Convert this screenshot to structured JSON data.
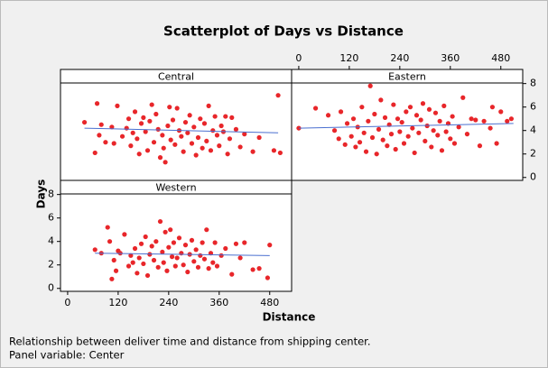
{
  "chart_data": {
    "type": "scatter",
    "title": "Scatterplot of Days vs Distance",
    "x_label": "Distance",
    "y_label": "Days",
    "footnotes": [
      "Relationship between deliver time and distance from shipping center.",
      "Panel variable: Center"
    ],
    "xlim": [
      -17,
      532
    ],
    "ylim": [
      -0.25,
      8.05
    ],
    "xticks": [
      0,
      120,
      240,
      360,
      480
    ],
    "yticks": [
      0,
      2,
      4,
      6,
      8
    ],
    "color": "#e8262a",
    "fit_color": "#4a6fd0",
    "panels": [
      {
        "name": "Central",
        "x": [
          40,
          65,
          70,
          75,
          80,
          90,
          105,
          110,
          118,
          130,
          140,
          145,
          150,
          155,
          160,
          165,
          170,
          175,
          180,
          185,
          190,
          195,
          200,
          205,
          210,
          215,
          220,
          225,
          228,
          232,
          238,
          242,
          245,
          250,
          255,
          260,
          265,
          270,
          275,
          280,
          285,
          290,
          295,
          300,
          305,
          310,
          315,
          320,
          325,
          330,
          335,
          340,
          345,
          350,
          355,
          360,
          365,
          370,
          375,
          380,
          385,
          390,
          400,
          410,
          420,
          440,
          455,
          490,
          500,
          505
        ],
        "y": [
          4.7,
          2.1,
          6.3,
          3.6,
          4.5,
          3.0,
          4.3,
          2.9,
          6.1,
          3.5,
          4.2,
          5.0,
          2.7,
          3.8,
          5.6,
          3.3,
          2.0,
          4.6,
          5.1,
          3.9,
          2.3,
          4.8,
          6.2,
          3.0,
          5.4,
          4.1,
          1.7,
          3.6,
          2.5,
          1.3,
          4.4,
          6.0,
          3.2,
          4.9,
          2.8,
          5.9,
          4.0,
          3.5,
          2.2,
          4.7,
          3.8,
          5.3,
          2.9,
          4.3,
          1.9,
          3.4,
          5.0,
          2.5,
          4.6,
          3.1,
          6.1,
          2.3,
          4.0,
          5.2,
          3.6,
          2.7,
          4.4,
          3.9,
          5.2,
          2.0,
          3.3,
          5.1,
          4.1,
          2.6,
          3.7,
          2.2,
          3.4,
          2.3,
          7.0,
          2.1
        ],
        "fit": {
          "x": [
            40,
            500
          ],
          "y": [
            4.2,
            3.8
          ]
        }
      },
      {
        "name": "Eastern",
        "x": [
          0,
          40,
          70,
          85,
          95,
          100,
          110,
          115,
          125,
          130,
          135,
          140,
          145,
          150,
          155,
          160,
          165,
          170,
          175,
          180,
          185,
          190,
          195,
          200,
          205,
          210,
          215,
          220,
          225,
          230,
          235,
          240,
          245,
          250,
          255,
          260,
          265,
          270,
          275,
          280,
          285,
          290,
          295,
          300,
          305,
          310,
          315,
          320,
          325,
          330,
          335,
          340,
          345,
          350,
          355,
          360,
          365,
          370,
          380,
          390,
          400,
          410,
          420,
          430,
          440,
          455,
          460,
          470,
          480,
          495,
          505
        ],
        "y": [
          4.2,
          5.9,
          5.3,
          4.0,
          3.3,
          5.6,
          2.8,
          4.6,
          3.5,
          5.0,
          2.6,
          4.3,
          3.0,
          6.0,
          3.8,
          2.2,
          4.8,
          7.8,
          3.4,
          5.4,
          2.0,
          4.1,
          6.6,
          3.2,
          5.1,
          2.7,
          4.5,
          3.7,
          6.2,
          2.4,
          5.0,
          3.9,
          4.7,
          2.9,
          5.6,
          3.5,
          6.0,
          4.2,
          2.1,
          5.3,
          3.8,
          4.9,
          6.3,
          3.1,
          4.4,
          5.8,
          2.6,
          4.0,
          5.5,
          3.6,
          4.8,
          2.3,
          6.1,
          3.9,
          4.6,
          3.3,
          5.2,
          2.9,
          4.3,
          6.8,
          3.7,
          5.0,
          4.9,
          2.7,
          4.8,
          4.2,
          6.0,
          2.9,
          5.6,
          4.8,
          5.0
        ],
        "fit": {
          "x": [
            0,
            510
          ],
          "y": [
            4.2,
            4.6
          ]
        }
      },
      {
        "name": "Western",
        "x": [
          65,
          80,
          95,
          100,
          105,
          110,
          115,
          120,
          125,
          135,
          145,
          150,
          155,
          160,
          165,
          170,
          175,
          180,
          185,
          190,
          195,
          200,
          205,
          210,
          215,
          220,
          225,
          228,
          232,
          236,
          240,
          244,
          248,
          252,
          256,
          260,
          265,
          270,
          275,
          280,
          285,
          290,
          295,
          300,
          305,
          310,
          315,
          320,
          325,
          330,
          335,
          340,
          345,
          350,
          355,
          365,
          375,
          390,
          400,
          410,
          420,
          440,
          455,
          475,
          480
        ],
        "y": [
          3.3,
          3.0,
          5.2,
          4.0,
          0.8,
          2.4,
          1.5,
          3.2,
          3.0,
          4.6,
          1.9,
          2.8,
          2.2,
          3.4,
          1.3,
          2.6,
          3.8,
          2.1,
          4.4,
          1.1,
          2.9,
          3.6,
          2.4,
          4.0,
          1.8,
          5.7,
          3.1,
          2.2,
          4.8,
          1.5,
          3.5,
          5.0,
          2.7,
          3.9,
          1.9,
          2.6,
          4.3,
          3.0,
          2.0,
          3.7,
          1.4,
          2.9,
          4.1,
          2.3,
          3.3,
          1.8,
          2.8,
          3.9,
          2.5,
          5.0,
          1.7,
          3.0,
          2.2,
          3.9,
          1.9,
          2.8,
          3.4,
          1.2,
          3.8,
          2.6,
          3.9,
          1.6,
          1.7,
          0.9,
          3.7
        ],
        "fit": {
          "x": [
            65,
            480
          ],
          "y": [
            3.0,
            2.8
          ]
        }
      }
    ]
  }
}
